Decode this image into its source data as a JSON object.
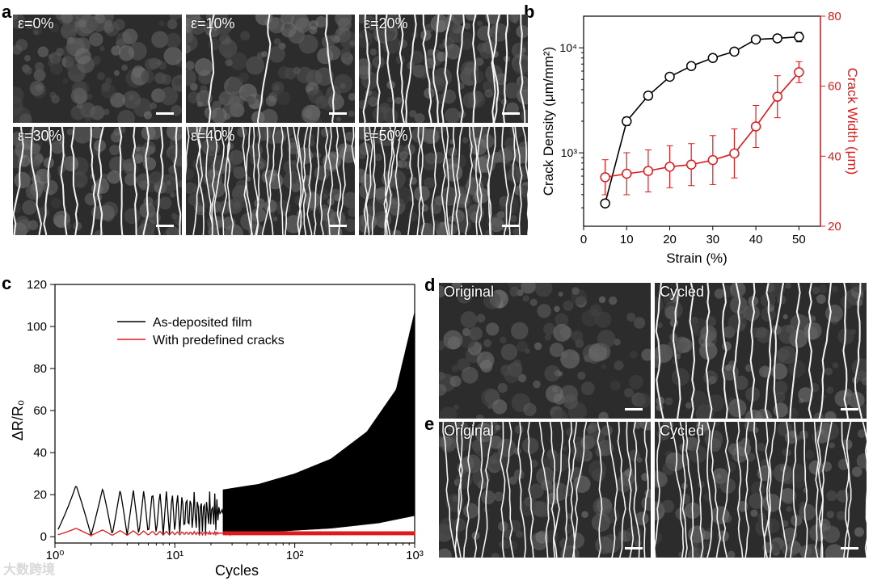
{
  "panels": {
    "a": {
      "letter": "a",
      "images": [
        {
          "label": "ε=0%",
          "cracks": 0
        },
        {
          "label": "ε=10%",
          "cracks": 3
        },
        {
          "label": "ε=20%",
          "cracks": 14
        },
        {
          "label": "ε=30%",
          "cracks": 12
        },
        {
          "label": "ε=40%",
          "cracks": 26
        },
        {
          "label": "ε=50%",
          "cracks": 24
        }
      ]
    },
    "b": {
      "letter": "b"
    },
    "c": {
      "letter": "c"
    },
    "d": {
      "letter": "d",
      "images": [
        {
          "label": "Original",
          "cracks": 0
        },
        {
          "label": "Cycled",
          "cracks": 14
        }
      ]
    },
    "e": {
      "letter": "e",
      "images": [
        {
          "label": "Original",
          "cracks": 22
        },
        {
          "label": "Cycled",
          "cracks": 22
        }
      ]
    }
  },
  "chart_data": [
    {
      "type": "line",
      "xlabel": "Strain (%)",
      "ylabel": "Crack Density (μm/mm²)",
      "ylabel_right": "Crack Width (μm)",
      "xlim": [
        0,
        55
      ],
      "ylim": [
        200,
        20000
      ],
      "y_log": true,
      "ylim_right": [
        20,
        80
      ],
      "x_ticks": [
        "0",
        "10",
        "20",
        "30",
        "40",
        "50"
      ],
      "y_ticks_right": [
        "20",
        "40",
        "60",
        "80"
      ],
      "y_tick_labels": [
        "10³",
        "10⁴"
      ],
      "colors": {
        "left": "#000000",
        "right": "#e0191b"
      },
      "series": [
        {
          "axis": "left",
          "x": [
            5,
            10,
            15,
            20,
            25,
            30,
            35,
            40,
            45,
            50
          ],
          "y": [
            330,
            2000,
            3500,
            5300,
            6700,
            8000,
            9200,
            12000,
            12300,
            12700
          ],
          "err": [
            20,
            180,
            300,
            350,
            450,
            650,
            650,
            700,
            800,
            1300
          ]
        },
        {
          "axis": "right",
          "x": [
            5,
            10,
            15,
            20,
            25,
            30,
            35,
            40,
            45,
            50
          ],
          "y": [
            34,
            35,
            35.8,
            37,
            37.6,
            38.9,
            40.8,
            48.5,
            57,
            64
          ],
          "err": [
            5,
            6,
            6,
            6,
            6,
            7,
            7,
            6,
            6,
            3
          ]
        }
      ]
    },
    {
      "type": "line",
      "xlabel": "Cycles",
      "ylabel": "ΔR/R₀",
      "x_log": true,
      "xlim": [
        1,
        1000
      ],
      "ylim": [
        -3,
        120
      ],
      "y_ticks": [
        "0",
        "20",
        "40",
        "60",
        "80",
        "100",
        "120"
      ],
      "x_tick_labels": [
        "10⁰",
        "10¹",
        "10²",
        "10³"
      ],
      "series": [
        {
          "name": "As-deposited film",
          "color": "#000000",
          "peaks": [
            [
              1.5,
              24.5
            ],
            [
              2.5,
              23
            ],
            [
              5,
              22
            ],
            [
              10,
              22
            ],
            [
              20,
              21.5
            ],
            [
              50,
              25
            ],
            [
              100,
              30
            ],
            [
              200,
              37
            ],
            [
              400,
              50
            ],
            [
              700,
              70
            ],
            [
              1000,
              107
            ]
          ],
          "valleys": [
            [
              1,
              0.5
            ],
            [
              10,
              1
            ],
            [
              50,
              2
            ],
            [
              200,
              4
            ],
            [
              500,
              6.5
            ],
            [
              1000,
              10
            ]
          ]
        },
        {
          "name": "With predefined cracks",
          "color": "#e0191b",
          "peaks": [
            [
              1.5,
              4
            ],
            [
              3,
              3
            ],
            [
              10,
              2.5
            ],
            [
              1000,
              2.5
            ]
          ],
          "valleys": [
            [
              1,
              0.5
            ],
            [
              10,
              0.8
            ],
            [
              1000,
              0.8
            ]
          ]
        }
      ]
    }
  ],
  "watermark": "大数跨境"
}
